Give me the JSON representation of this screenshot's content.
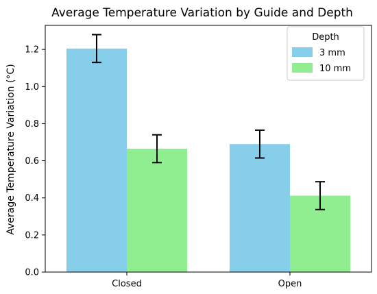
{
  "chart_data": {
    "type": "bar",
    "title": "Average Temperature Variation by Guide and Depth",
    "xlabel": "",
    "ylabel": "Average Temperature Variation (°C)",
    "categories": [
      "Closed",
      "Open"
    ],
    "series": [
      {
        "name": "3 mm",
        "color": "#87ceeb",
        "values": [
          1.205,
          0.69
        ],
        "errors": [
          0.075,
          0.075
        ]
      },
      {
        "name": "10 mm",
        "color": "#90ee90",
        "values": [
          0.665,
          0.412
        ],
        "errors": [
          0.075,
          0.075
        ]
      }
    ],
    "ylim": [
      0,
      1.33
    ],
    "yticks": [
      "0.0",
      "0.2",
      "0.4",
      "0.6",
      "0.8",
      "1.0",
      "1.2"
    ],
    "legend": {
      "title": "Depth",
      "position": "top-right"
    },
    "grid": false
  }
}
